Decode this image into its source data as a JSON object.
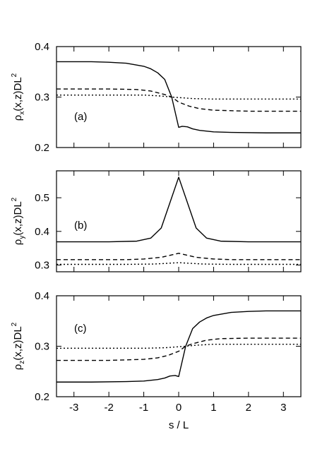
{
  "chart_data": [
    {
      "type": "line",
      "panel_label": "(a)",
      "ylabel": {
        "base": "ρ",
        "sub": "x",
        "args": "(x,z)DL",
        "sup": "2"
      },
      "xlim": [
        -3.5,
        3.5
      ],
      "ylim": [
        0.2,
        0.4
      ],
      "yticks": [
        0.2,
        0.3,
        0.4
      ],
      "ytick_labels": [
        "0.2",
        "0.3",
        "0.4"
      ],
      "xticks": [
        -3,
        -2,
        -1,
        0,
        1,
        2,
        3
      ],
      "series": [
        {
          "style": "solid",
          "points": [
            [
              -3.5,
              0.37
            ],
            [
              -2.5,
              0.37
            ],
            [
              -2.0,
              0.369
            ],
            [
              -1.5,
              0.367
            ],
            [
              -1.0,
              0.361
            ],
            [
              -0.8,
              0.356
            ],
            [
              -0.6,
              0.348
            ],
            [
              -0.4,
              0.335
            ],
            [
              -0.2,
              0.3
            ],
            [
              0,
              0.24
            ],
            [
              0.1,
              0.242
            ],
            [
              0.25,
              0.241
            ],
            [
              0.4,
              0.237
            ],
            [
              0.6,
              0.234
            ],
            [
              1.0,
              0.231
            ],
            [
              1.5,
              0.23
            ],
            [
              2.5,
              0.229
            ],
            [
              3.5,
              0.229
            ]
          ]
        },
        {
          "style": "dashed",
          "points": [
            [
              -3.5,
              0.316
            ],
            [
              -2.0,
              0.316
            ],
            [
              -1.2,
              0.315
            ],
            [
              -0.8,
              0.312
            ],
            [
              -0.4,
              0.305
            ],
            [
              -0.2,
              0.3
            ],
            [
              0,
              0.29
            ],
            [
              0.3,
              0.282
            ],
            [
              0.6,
              0.277
            ],
            [
              1.0,
              0.274
            ],
            [
              2.0,
              0.272
            ],
            [
              3.5,
              0.272
            ]
          ]
        },
        {
          "style": "dotted",
          "points": [
            [
              -3.5,
              0.304
            ],
            [
              -2.0,
              0.304
            ],
            [
              -1.0,
              0.304
            ],
            [
              -0.5,
              0.302
            ],
            [
              -0.2,
              0.3
            ],
            [
              0,
              0.299
            ],
            [
              0.4,
              0.297
            ],
            [
              1.0,
              0.296
            ],
            [
              3.5,
              0.296
            ]
          ]
        }
      ]
    },
    {
      "type": "line",
      "panel_label": "(b)",
      "ylabel": {
        "base": "ρ",
        "sub": "y",
        "args": "(x,z)DL",
        "sup": "2"
      },
      "xlim": [
        -3.5,
        3.5
      ],
      "ylim": [
        0.28,
        0.58
      ],
      "yticks": [
        0.3,
        0.4,
        0.5
      ],
      "ytick_labels": [
        "0.3",
        "0.4",
        "0.5"
      ],
      "xticks": [
        -3,
        -2,
        -1,
        0,
        1,
        2,
        3
      ],
      "series": [
        {
          "style": "solid",
          "points": [
            [
              -3.5,
              0.369
            ],
            [
              -2.0,
              0.369
            ],
            [
              -1.2,
              0.371
            ],
            [
              -0.8,
              0.38
            ],
            [
              -0.5,
              0.41
            ],
            [
              0,
              0.561
            ],
            [
              0.5,
              0.41
            ],
            [
              0.8,
              0.38
            ],
            [
              1.2,
              0.371
            ],
            [
              2.0,
              0.369
            ],
            [
              3.5,
              0.369
            ]
          ]
        },
        {
          "style": "dashed",
          "points": [
            [
              -3.5,
              0.316
            ],
            [
              -1.5,
              0.316
            ],
            [
              -1.0,
              0.318
            ],
            [
              -0.5,
              0.323
            ],
            [
              0,
              0.335
            ],
            [
              0.5,
              0.323
            ],
            [
              1.0,
              0.318
            ],
            [
              1.5,
              0.316
            ],
            [
              3.5,
              0.316
            ]
          ]
        },
        {
          "style": "dotted",
          "points": [
            [
              -3.5,
              0.302
            ],
            [
              -1.5,
              0.302
            ],
            [
              -0.7,
              0.303
            ],
            [
              0,
              0.307
            ],
            [
              0.7,
              0.303
            ],
            [
              1.5,
              0.302
            ],
            [
              3.5,
              0.302
            ]
          ]
        }
      ]
    },
    {
      "type": "line",
      "panel_label": "(c)",
      "ylabel": {
        "base": "ρ",
        "sub": "z",
        "args": "(x,z)DL",
        "sup": "2"
      },
      "xlabel": "s / L",
      "xlim": [
        -3.5,
        3.5
      ],
      "ylim": [
        0.2,
        0.4
      ],
      "yticks": [
        0.2,
        0.3,
        0.4
      ],
      "ytick_labels": [
        "0.2",
        "0.3",
        "0.4"
      ],
      "xticks": [
        -3,
        -2,
        -1,
        0,
        1,
        2,
        3
      ],
      "xtick_labels": [
        "-3",
        "-2",
        "-1",
        "0",
        "1",
        "2",
        "3"
      ],
      "series": [
        {
          "style": "solid",
          "points": [
            [
              -3.5,
              0.229
            ],
            [
              -2.5,
              0.229
            ],
            [
              -1.5,
              0.23
            ],
            [
              -1.0,
              0.231
            ],
            [
              -0.6,
              0.234
            ],
            [
              -0.4,
              0.237
            ],
            [
              -0.25,
              0.241
            ],
            [
              -0.1,
              0.242
            ],
            [
              0,
              0.24
            ],
            [
              0.2,
              0.3
            ],
            [
              0.4,
              0.335
            ],
            [
              0.6,
              0.348
            ],
            [
              0.8,
              0.356
            ],
            [
              1.0,
              0.361
            ],
            [
              1.5,
              0.367
            ],
            [
              2.0,
              0.369
            ],
            [
              2.5,
              0.37
            ],
            [
              3.5,
              0.37
            ]
          ]
        },
        {
          "style": "dashed",
          "points": [
            [
              -3.5,
              0.272
            ],
            [
              -2.0,
              0.272
            ],
            [
              -1.0,
              0.274
            ],
            [
              -0.6,
              0.277
            ],
            [
              -0.3,
              0.282
            ],
            [
              0,
              0.29
            ],
            [
              0.2,
              0.3
            ],
            [
              0.4,
              0.305
            ],
            [
              0.8,
              0.312
            ],
            [
              1.2,
              0.315
            ],
            [
              2.0,
              0.316
            ],
            [
              3.5,
              0.316
            ]
          ]
        },
        {
          "style": "dotted",
          "points": [
            [
              -3.5,
              0.296
            ],
            [
              -1.0,
              0.296
            ],
            [
              -0.4,
              0.297
            ],
            [
              0,
              0.299
            ],
            [
              0.2,
              0.3
            ],
            [
              0.5,
              0.302
            ],
            [
              1.0,
              0.304
            ],
            [
              2.0,
              0.304
            ],
            [
              3.5,
              0.304
            ]
          ]
        }
      ]
    }
  ]
}
